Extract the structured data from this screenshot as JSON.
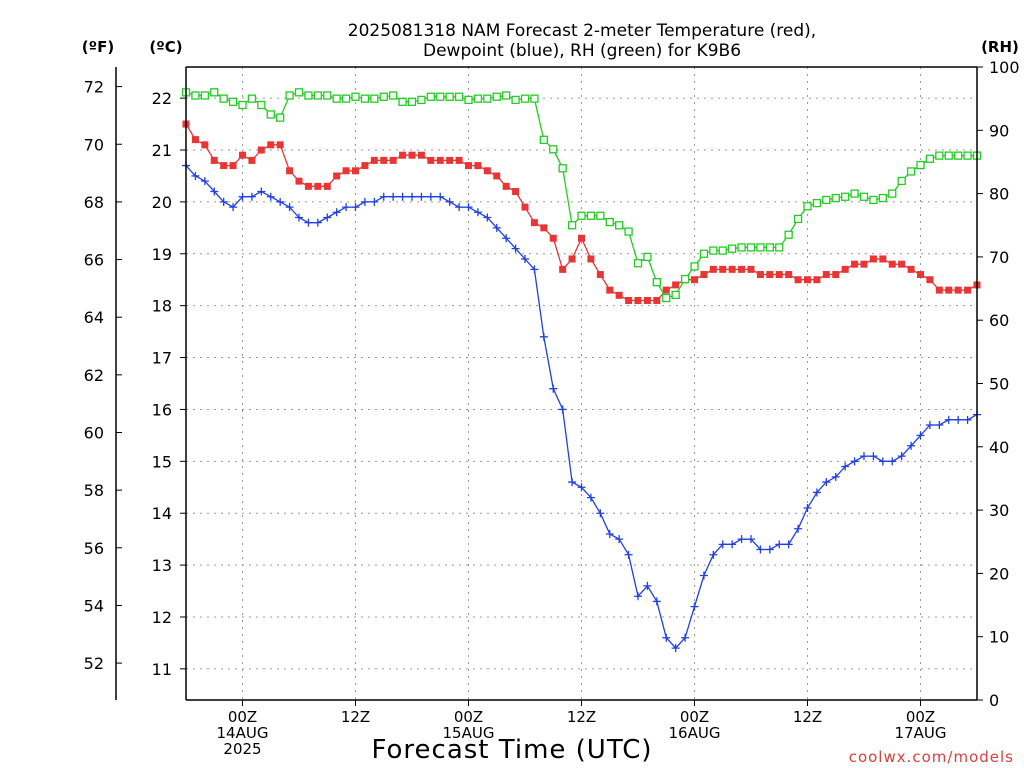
{
  "chart_data": {
    "type": "line",
    "title_lines": [
      "2025081318 NAM Forecast 2-meter Temperature (red),",
      "Dewpoint (blue), RH (green) for K9B6"
    ],
    "units": {
      "fahrenheit": "(ºF)",
      "celsius": "(ºC)",
      "rh": "(RH)"
    },
    "xlabel": "Forecast Time (UTC)",
    "credit": "coolwx.com/models",
    "y_celsius": {
      "ylim": [
        10.4,
        22.6
      ],
      "ticks": [
        11,
        12,
        13,
        14,
        15,
        16,
        17,
        18,
        19,
        20,
        21,
        22
      ]
    },
    "y_fahrenheit": {
      "ticks": [
        52,
        54,
        56,
        58,
        60,
        62,
        64,
        66,
        68,
        70,
        72
      ]
    },
    "y_rh": {
      "ylim": [
        0,
        100
      ],
      "ticks": [
        0,
        10,
        20,
        30,
        40,
        50,
        60,
        70,
        80,
        90,
        100
      ]
    },
    "x_axis": {
      "xlim": [
        18,
        102
      ],
      "unit": "hours after 2025-08-13 00Z",
      "ticks": [
        {
          "hour": 24,
          "lines": [
            "00Z",
            "14AUG",
            "2025"
          ]
        },
        {
          "hour": 36,
          "lines": [
            "12Z"
          ]
        },
        {
          "hour": 48,
          "lines": [
            "00Z",
            "15AUG"
          ]
        },
        {
          "hour": 60,
          "lines": [
            "12Z"
          ]
        },
        {
          "hour": 72,
          "lines": [
            "00Z",
            "16AUG"
          ]
        },
        {
          "hour": 84,
          "lines": [
            "12Z"
          ]
        },
        {
          "hour": 96,
          "lines": [
            "00Z",
            "17AUG"
          ]
        }
      ]
    },
    "grid": true,
    "series": [
      {
        "name": "Temperature",
        "axis": "celsius",
        "color": "#e83535",
        "marker": "filled-square",
        "x": [
          18,
          19,
          20,
          21,
          22,
          23,
          24,
          25,
          26,
          27,
          28,
          29,
          30,
          31,
          32,
          33,
          34,
          35,
          36,
          37,
          38,
          39,
          40,
          41,
          42,
          43,
          44,
          45,
          46,
          47,
          48,
          49,
          50,
          51,
          52,
          53,
          54,
          55,
          56,
          57,
          58,
          59,
          60,
          61,
          62,
          63,
          64,
          65,
          66,
          67,
          68,
          69,
          70,
          71,
          72,
          73,
          74,
          75,
          76,
          77,
          78,
          79,
          80,
          81,
          82,
          83,
          84,
          85,
          86,
          87,
          88,
          89,
          90,
          91,
          92,
          93,
          94,
          95,
          96,
          97,
          98,
          99,
          100,
          101,
          102
        ],
        "values": [
          21.5,
          21.2,
          21.1,
          20.8,
          20.7,
          20.7,
          20.9,
          20.8,
          21.0,
          21.1,
          21.1,
          20.6,
          20.4,
          20.3,
          20.3,
          20.3,
          20.5,
          20.6,
          20.6,
          20.7,
          20.8,
          20.8,
          20.8,
          20.9,
          20.9,
          20.9,
          20.8,
          20.8,
          20.8,
          20.8,
          20.7,
          20.7,
          20.6,
          20.5,
          20.3,
          20.2,
          19.9,
          19.6,
          19.5,
          19.3,
          18.7,
          18.9,
          19.3,
          18.9,
          18.6,
          18.3,
          18.2,
          18.1,
          18.1,
          18.1,
          18.1,
          18.3,
          18.4,
          18.5,
          18.5,
          18.6,
          18.7,
          18.7,
          18.7,
          18.7,
          18.7,
          18.6,
          18.6,
          18.6,
          18.6,
          18.5,
          18.5,
          18.5,
          18.6,
          18.6,
          18.7,
          18.8,
          18.8,
          18.9,
          18.9,
          18.8,
          18.8,
          18.7,
          18.6,
          18.5,
          18.3,
          18.3,
          18.3,
          18.3,
          18.4
        ]
      },
      {
        "name": "Dewpoint",
        "axis": "celsius",
        "color": "#2040e0",
        "marker": "plus",
        "x": [
          18,
          19,
          20,
          21,
          22,
          23,
          24,
          25,
          26,
          27,
          28,
          29,
          30,
          31,
          32,
          33,
          34,
          35,
          36,
          37,
          38,
          39,
          40,
          41,
          42,
          43,
          44,
          45,
          46,
          47,
          48,
          49,
          50,
          51,
          52,
          53,
          54,
          55,
          56,
          57,
          58,
          59,
          60,
          61,
          62,
          63,
          64,
          65,
          66,
          67,
          68,
          69,
          70,
          71,
          72,
          73,
          74,
          75,
          76,
          77,
          78,
          79,
          80,
          81,
          82,
          83,
          84,
          85,
          86,
          87,
          88,
          89,
          90,
          91,
          92,
          93,
          94,
          95,
          96,
          97,
          98,
          99,
          100,
          101,
          102
        ],
        "values": [
          20.7,
          20.5,
          20.4,
          20.2,
          20.0,
          19.9,
          20.1,
          20.1,
          20.2,
          20.1,
          20.0,
          19.9,
          19.7,
          19.6,
          19.6,
          19.7,
          19.8,
          19.9,
          19.9,
          20.0,
          20.0,
          20.1,
          20.1,
          20.1,
          20.1,
          20.1,
          20.1,
          20.1,
          20.0,
          19.9,
          19.9,
          19.8,
          19.7,
          19.5,
          19.3,
          19.1,
          18.9,
          18.7,
          17.4,
          16.4,
          16.0,
          14.6,
          14.5,
          14.3,
          14.0,
          13.6,
          13.5,
          13.2,
          12.4,
          12.6,
          12.3,
          11.6,
          11.4,
          11.6,
          12.2,
          12.8,
          13.2,
          13.4,
          13.4,
          13.5,
          13.5,
          13.3,
          13.3,
          13.4,
          13.4,
          13.7,
          14.1,
          14.4,
          14.6,
          14.7,
          14.9,
          15.0,
          15.1,
          15.1,
          15.0,
          15.0,
          15.1,
          15.3,
          15.5,
          15.7,
          15.7,
          15.8,
          15.8,
          15.8,
          15.9
        ]
      },
      {
        "name": "RH",
        "axis": "rh",
        "color": "#22cc22",
        "marker": "open-square",
        "x": [
          18,
          19,
          20,
          21,
          22,
          23,
          24,
          25,
          26,
          27,
          28,
          29,
          30,
          31,
          32,
          33,
          34,
          35,
          36,
          37,
          38,
          39,
          40,
          41,
          42,
          43,
          44,
          45,
          46,
          47,
          48,
          49,
          50,
          51,
          52,
          53,
          54,
          55,
          56,
          57,
          58,
          59,
          60,
          61,
          62,
          63,
          64,
          65,
          66,
          67,
          68,
          69,
          70,
          71,
          72,
          73,
          74,
          75,
          76,
          77,
          78,
          79,
          80,
          81,
          82,
          83,
          84,
          85,
          86,
          87,
          88,
          89,
          90,
          91,
          92,
          93,
          94,
          95,
          96,
          97,
          98,
          99,
          100,
          101,
          102
        ],
        "values": [
          96,
          95.5,
          95.5,
          96,
          95,
          94.5,
          94,
          95,
          94,
          92.5,
          92,
          95.5,
          96,
          95.5,
          95.5,
          95.5,
          95,
          95,
          95.3,
          95,
          95,
          95.3,
          95.5,
          94.5,
          94.5,
          94.8,
          95.3,
          95.3,
          95.3,
          95.3,
          94.8,
          95,
          95,
          95.3,
          95.5,
          94.8,
          95,
          95,
          88.5,
          87,
          84,
          75,
          76.5,
          76.5,
          76.5,
          75.5,
          75,
          74,
          69,
          70,
          66,
          63.5,
          64,
          66.5,
          68.5,
          70.5,
          71,
          71,
          71.3,
          71.5,
          71.5,
          71.5,
          71.5,
          71.5,
          73.5,
          76,
          78,
          78.5,
          79,
          79.3,
          79.5,
          80,
          79.5,
          79,
          79.3,
          80,
          82,
          83.5,
          84.5,
          85.5,
          86,
          86,
          86,
          86,
          86
        ]
      }
    ]
  }
}
